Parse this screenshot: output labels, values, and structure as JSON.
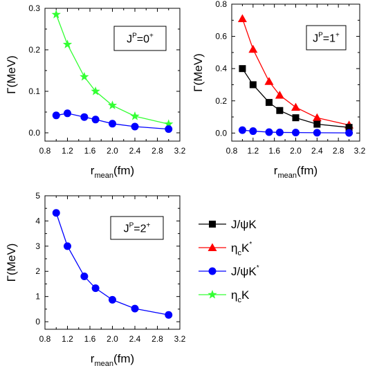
{
  "colors": {
    "J/psi K": "#000000",
    "eta_c K*": "#ff0000",
    "J/psi K*": "#0000ff",
    "eta_c K": "#33ff33"
  },
  "legend": {
    "placement": "right of bottom-left panel",
    "entries": [
      {
        "key": "J/psi K",
        "base": "J/ψK",
        "sub": "",
        "sup": "",
        "marker": "square"
      },
      {
        "key": "eta_c K*",
        "base": "η",
        "sub": "c",
        "rest": "K",
        "sup": "*",
        "marker": "triangle"
      },
      {
        "key": "J/psi K*",
        "base": "J/ψK",
        "sub": "",
        "sup": "*",
        "marker": "circle"
      },
      {
        "key": "eta_c K",
        "base": "η",
        "sub": "c",
        "rest": "K",
        "sup": "",
        "marker": "star"
      }
    ]
  },
  "chart_data": [
    {
      "type": "line",
      "panel": "top-left",
      "label": {
        "j": "J",
        "p": "P",
        "val": "=0",
        "parity": "+"
      },
      "xlabel": {
        "base": "r",
        "sub": "mean",
        "unit": "(fm)"
      },
      "ylabel": "Γ(MeV)",
      "xlim": [
        0.8,
        3.2
      ],
      "ylim": [
        -0.02,
        0.3
      ],
      "xticks": [
        "0.8",
        "1.2",
        "1.6",
        "2.0",
        "2.4",
        "2.8",
        "3.2"
      ],
      "yticks": [
        "0.0",
        "0.1",
        "0.2",
        "0.3"
      ],
      "grid": false,
      "series": [
        {
          "key": "eta_c K",
          "marker": "star",
          "x": [
            1.0,
            1.2,
            1.5,
            1.7,
            2.0,
            2.4,
            3.0
          ],
          "y": [
            0.285,
            0.213,
            0.135,
            0.1,
            0.066,
            0.04,
            0.021
          ]
        },
        {
          "key": "J/psi K*",
          "marker": "circle",
          "x": [
            1.0,
            1.2,
            1.5,
            1.7,
            2.0,
            2.4,
            3.0
          ],
          "y": [
            0.042,
            0.047,
            0.038,
            0.032,
            0.022,
            0.015,
            0.009
          ]
        }
      ]
    },
    {
      "type": "line",
      "panel": "top-right",
      "label": {
        "j": "J",
        "p": "P",
        "val": "=1",
        "parity": "+"
      },
      "xlabel": {
        "base": "r",
        "sub": "mean",
        "unit": "(fm)"
      },
      "ylabel": "Γ(MeV)",
      "xlim": [
        0.8,
        3.2
      ],
      "ylim": [
        -0.05,
        0.8
      ],
      "xticks": [
        "0.8",
        "1.2",
        "1.6",
        "2.0",
        "2.4",
        "2.8",
        "3.2"
      ],
      "yticks": [
        "0.0",
        "0.2",
        "0.4",
        "0.6",
        "0.8"
      ],
      "grid": false,
      "series": [
        {
          "key": "eta_c K*",
          "marker": "triangle",
          "x": [
            1.0,
            1.2,
            1.5,
            1.7,
            2.0,
            2.4,
            3.0
          ],
          "y": [
            0.71,
            0.52,
            0.32,
            0.235,
            0.16,
            0.095,
            0.05
          ]
        },
        {
          "key": "J/psi K",
          "marker": "square",
          "x": [
            1.0,
            1.2,
            1.5,
            1.7,
            2.0,
            2.4,
            3.0
          ],
          "y": [
            0.4,
            0.3,
            0.19,
            0.14,
            0.095,
            0.055,
            0.035
          ]
        },
        {
          "key": "J/psi K*",
          "marker": "circle",
          "x": [
            1.0,
            1.2,
            1.5,
            1.7,
            2.0,
            2.4,
            3.0
          ],
          "y": [
            0.018,
            0.012,
            0.006,
            0.004,
            0.003,
            0.002,
            0.001
          ]
        }
      ]
    },
    {
      "type": "line",
      "panel": "bottom-left",
      "label": {
        "j": "J",
        "p": "P",
        "val": "=2",
        "parity": "+"
      },
      "xlabel": {
        "base": "r",
        "sub": "mean",
        "unit": "(fm)"
      },
      "ylabel": "Γ(MeV)",
      "xlim": [
        0.8,
        3.2
      ],
      "ylim": [
        -0.3,
        5
      ],
      "xticks": [
        "0.8",
        "1.2",
        "1.6",
        "2.0",
        "2.4",
        "2.8",
        "3.2"
      ],
      "yticks": [
        "0",
        "1",
        "2",
        "3",
        "4",
        "5"
      ],
      "grid": false,
      "series": [
        {
          "key": "J/psi K*",
          "marker": "circle",
          "x": [
            1.0,
            1.2,
            1.5,
            1.7,
            2.0,
            2.4,
            3.0
          ],
          "y": [
            4.32,
            3.0,
            1.8,
            1.33,
            0.87,
            0.52,
            0.27
          ]
        }
      ]
    }
  ]
}
